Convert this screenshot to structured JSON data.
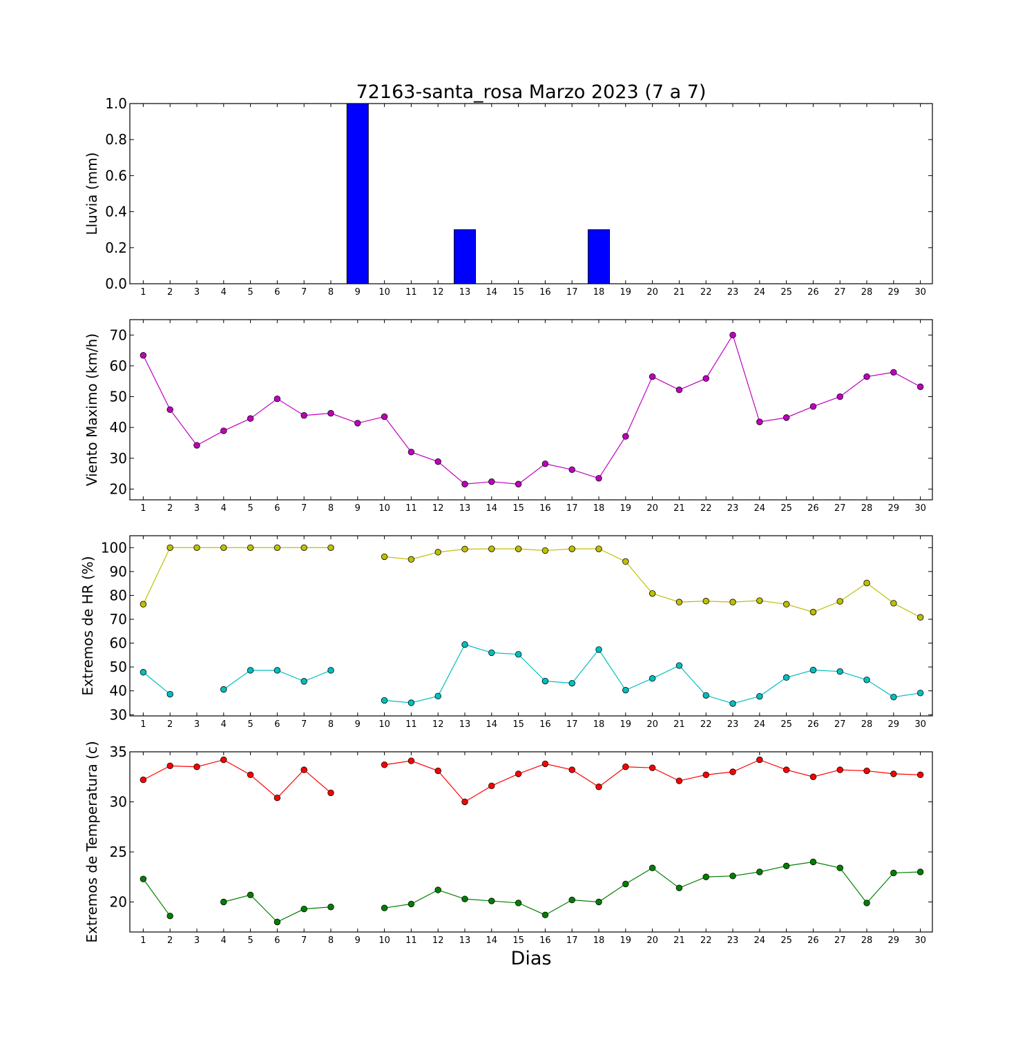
{
  "title": "72163-santa_rosa Marzo 2023  (7 a 7)",
  "xlabel": "Dias",
  "chart_data": [
    {
      "type": "bar",
      "ylabel": "Lluvia (mm)",
      "ylim": [
        0,
        1
      ],
      "yticks": [
        "0.0",
        "0.2",
        "0.4",
        "0.6",
        "0.8",
        "1.0"
      ],
      "ytick_values": [
        0,
        0.2,
        0.4,
        0.6,
        0.8,
        1.0
      ],
      "categories": [
        "1",
        "2",
        "3",
        "4",
        "5",
        "6",
        "7",
        "8",
        "9",
        "10",
        "11",
        "12",
        "13",
        "14",
        "15",
        "16",
        "17",
        "18",
        "19",
        "20",
        "21",
        "22",
        "23",
        "24",
        "25",
        "26",
        "27",
        "28",
        "29",
        "30"
      ],
      "series": [
        {
          "color": "#0000ff",
          "values": [
            0,
            0,
            0,
            0,
            0,
            0,
            0,
            0,
            1.0,
            0,
            0,
            0,
            0.3,
            0,
            0,
            0,
            0,
            0.3,
            0,
            0,
            0,
            0,
            0,
            0,
            0,
            0,
            0,
            0,
            0,
            0
          ]
        }
      ]
    },
    {
      "type": "line",
      "ylabel": "Viento Maximo (km/h)",
      "ylim": [
        16.5,
        75
      ],
      "yticks": [
        "20",
        "30",
        "40",
        "50",
        "60",
        "70"
      ],
      "ytick_values": [
        20,
        30,
        40,
        50,
        60,
        70
      ],
      "categories": [
        "1",
        "2",
        "3",
        "4",
        "5",
        "6",
        "7",
        "8",
        "9",
        "10",
        "11",
        "12",
        "13",
        "14",
        "15",
        "16",
        "17",
        "18",
        "19",
        "20",
        "21",
        "22",
        "23",
        "24",
        "25",
        "26",
        "27",
        "28",
        "29",
        "30"
      ],
      "series": [
        {
          "color": "#bf00bf",
          "values": [
            63.4,
            45.8,
            34.2,
            38.9,
            42.9,
            49.3,
            43.9,
            44.6,
            41.4,
            43.5,
            32.0,
            28.9,
            21.6,
            22.4,
            21.6,
            28.2,
            26.3,
            23.5,
            37.1,
            56.5,
            52.2,
            55.9,
            70.0,
            41.8,
            43.2,
            46.8,
            50.0,
            56.5,
            57.9,
            53.2
          ]
        }
      ]
    },
    {
      "type": "line",
      "ylabel": "Extremos de HR (%)",
      "ylim": [
        29.5,
        105
      ],
      "yticks": [
        "30",
        "40",
        "50",
        "60",
        "70",
        "80",
        "90",
        "100"
      ],
      "ytick_values": [
        30,
        40,
        50,
        60,
        70,
        80,
        90,
        100
      ],
      "categories": [
        "1",
        "2",
        "3",
        "4",
        "5",
        "6",
        "7",
        "8",
        "9",
        "10",
        "11",
        "12",
        "13",
        "14",
        "15",
        "16",
        "17",
        "18",
        "19",
        "20",
        "21",
        "22",
        "23",
        "24",
        "25",
        "26",
        "27",
        "28",
        "29",
        "30"
      ],
      "series": [
        {
          "color": "#bfbf00",
          "values": [
            76.3,
            100,
            100,
            100,
            100,
            100,
            100,
            100,
            null,
            96.2,
            95.1,
            98.1,
            99.4,
            99.5,
            99.5,
            98.8,
            99.5,
            99.5,
            94.2,
            80.8,
            77.2,
            77.6,
            77.2,
            77.8,
            76.3,
            73.0,
            77.5,
            85.2,
            76.7,
            70.8
          ]
        },
        {
          "color": "#00bfbf",
          "values": [
            47.8,
            38.6,
            null,
            40.6,
            48.6,
            48.6,
            44.0,
            48.6,
            null,
            36.0,
            35.0,
            37.8,
            59.4,
            56.0,
            55.3,
            44.1,
            43.2,
            57.3,
            40.3,
            45.2,
            50.6,
            38.1,
            34.7,
            37.7,
            45.6,
            48.7,
            48.1,
            44.6,
            37.4,
            39.1
          ]
        }
      ]
    },
    {
      "type": "line",
      "ylabel": "Extremos de Temperatura (c)",
      "ylim": [
        17,
        35
      ],
      "yticks": [
        "20",
        "25",
        "30",
        "35"
      ],
      "ytick_values": [
        20,
        25,
        30,
        35
      ],
      "categories": [
        "1",
        "2",
        "3",
        "4",
        "5",
        "6",
        "7",
        "8",
        "9",
        "10",
        "11",
        "12",
        "13",
        "14",
        "15",
        "16",
        "17",
        "18",
        "19",
        "20",
        "21",
        "22",
        "23",
        "24",
        "25",
        "26",
        "27",
        "28",
        "29",
        "30"
      ],
      "series": [
        {
          "color": "#ff0000",
          "values": [
            32.2,
            33.6,
            33.5,
            34.2,
            32.7,
            30.4,
            33.2,
            30.9,
            null,
            33.7,
            34.1,
            33.1,
            30.0,
            31.6,
            32.8,
            33.8,
            33.2,
            31.5,
            33.5,
            33.4,
            32.1,
            32.7,
            33.0,
            34.2,
            33.2,
            32.5,
            33.2,
            33.1,
            32.8,
            32.7
          ]
        },
        {
          "color": "#007f00",
          "values": [
            22.3,
            18.6,
            null,
            20.0,
            20.7,
            18.0,
            19.3,
            19.5,
            null,
            19.4,
            19.8,
            21.2,
            20.3,
            20.1,
            19.9,
            18.7,
            20.2,
            20.0,
            21.8,
            23.4,
            21.4,
            22.5,
            22.6,
            23.0,
            23.6,
            24.0,
            23.4,
            19.9,
            22.9,
            23.0
          ]
        }
      ]
    }
  ]
}
